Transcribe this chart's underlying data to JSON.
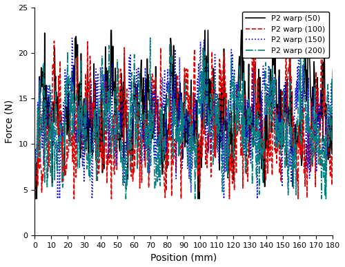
{
  "title": "",
  "xlabel": "Position (mm)",
  "ylabel": "Force (N)",
  "xlim": [
    0,
    180
  ],
  "ylim": [
    0,
    25
  ],
  "xticks": [
    0,
    10,
    20,
    30,
    40,
    50,
    60,
    70,
    80,
    90,
    100,
    110,
    120,
    130,
    140,
    150,
    160,
    170,
    180
  ],
  "yticks": [
    0,
    5,
    10,
    15,
    20,
    25
  ],
  "legend_labels": [
    "P2 warp (50)",
    "P2 warp (100)",
    "P2 warp (150)",
    "P2 warp (200)"
  ],
  "colors": [
    "black",
    "#e00000",
    "#0000dd",
    "#008080"
  ],
  "linestyles": [
    "-",
    "--",
    ":",
    "-."
  ],
  "linewidths": [
    1.2,
    1.2,
    1.2,
    1.2
  ],
  "n_points": 600,
  "x_end": 180,
  "ramp_end": 3.0,
  "means": [
    13.0,
    11.0,
    12.5,
    11.5
  ],
  "seed": 7
}
